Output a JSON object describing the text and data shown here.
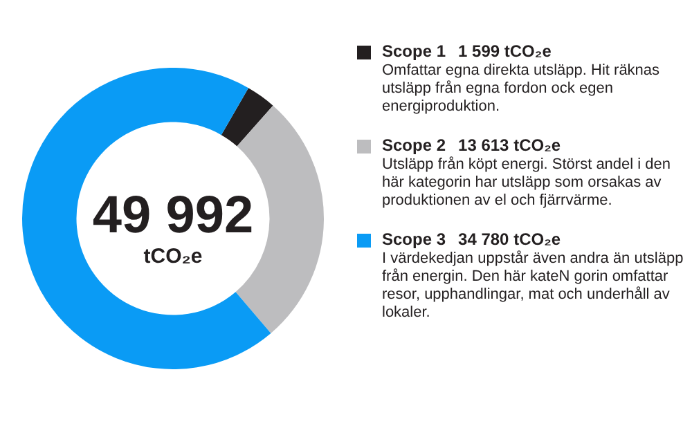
{
  "chart_data": {
    "type": "donut",
    "categories": [
      "Scope 1",
      "Scope 2",
      "Scope 3"
    ],
    "values": [
      1599,
      13613,
      34780
    ],
    "colors": [
      "#231f20",
      "#bdbdbf",
      "#0a9bf5"
    ],
    "value_labels": [
      "1 599 tCO₂e",
      "13 613 tCO₂e",
      "34 780 tCO₂e"
    ],
    "legend": "right",
    "annotations": [
      "Omfattar egna direkta utsläpp. Hit räknas utsläpp från egna fordon ock egen energiproduktion.",
      "Utsläpp från köpt energi. Störst andel i den här kategorin har utsläpp som orsakas av produktionen av el och fjärrvärme.",
      "I värdekedjan uppstår även andra än utsläpp från energin. Den här kateN gorin omfattar resor, upphandlingar, mat och underhåll av lokaler.",
      "49 992",
      "tCO₂e"
    ]
  }
}
